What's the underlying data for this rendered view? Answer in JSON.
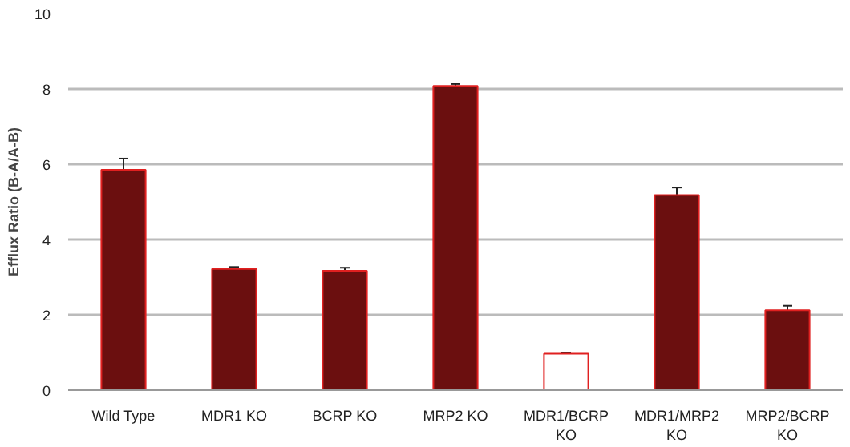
{
  "chart_data": {
    "type": "bar",
    "ylabel": "Efflux Ratio (B-A/A-B)",
    "categories": [
      "Wild Type",
      "MDR1 KO",
      "BCRP KO",
      "MRP2 KO",
      "MDR1/BCRP KO",
      "MDR1/MRP2 KO",
      "MRP2/BCRP KO"
    ],
    "values": [
      5.85,
      3.22,
      3.17,
      8.08,
      0.97,
      5.18,
      2.12
    ],
    "errors": [
      0.3,
      0.05,
      0.08,
      0.05,
      0.02,
      0.2,
      0.12
    ],
    "colors": [
      "#6b0f0f",
      "#6b0f0f",
      "#6b0f0f",
      "#6b0f0f",
      "#ffffff",
      "#6b0f0f",
      "#6b0f0f"
    ],
    "ylim": [
      0,
      10
    ],
    "yticks": [
      0,
      2,
      4,
      6,
      8,
      10
    ],
    "grid": "y"
  }
}
